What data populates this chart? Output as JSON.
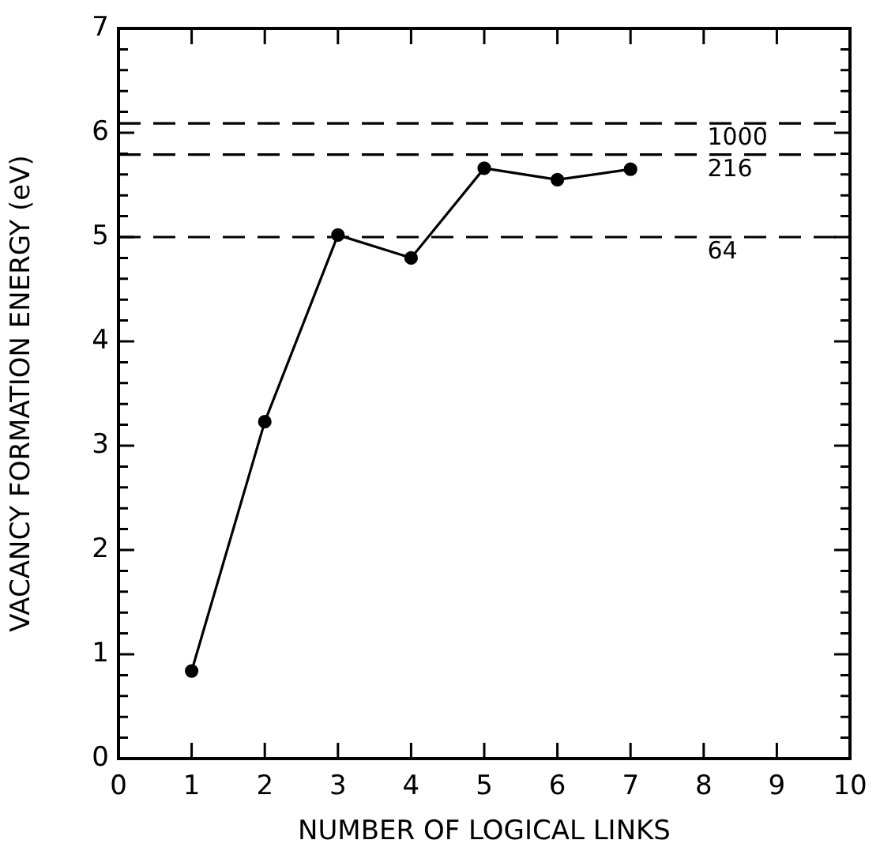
{
  "chart_data": {
    "type": "line",
    "xlabel": "NUMBER OF LOGICAL LINKS",
    "ylabel": "VACANCY FORMATION ENERGY (eV)",
    "x": [
      1,
      2,
      3,
      4,
      5,
      6,
      7
    ],
    "series": [
      {
        "color": "#000000",
        "values": [
          0.84,
          3.23,
          5.02,
          4.8,
          5.66,
          5.55,
          5.65
        ]
      }
    ],
    "xlim": [
      0,
      10
    ],
    "xticks": [
      0,
      1,
      2,
      3,
      4,
      5,
      6,
      7,
      8,
      9,
      10
    ],
    "ylim": [
      0,
      7
    ],
    "yticks": [
      0,
      {
        "value": 0.2,
        "label": null
      },
      {
        "value": 0.4,
        "label": null
      },
      {
        "value": 0.6,
        "label": null
      },
      {
        "value": 0.8,
        "label": null
      },
      1,
      {
        "value": 1.2,
        "label": null
      },
      {
        "value": 1.4,
        "label": null
      },
      {
        "value": 1.6,
        "label": null
      },
      {
        "value": 1.8,
        "label": null
      },
      2,
      {
        "value": 2.2,
        "label": null
      },
      {
        "value": 2.4,
        "label": null
      },
      {
        "value": 2.6,
        "label": null
      },
      {
        "value": 2.8,
        "label": null
      },
      3,
      {
        "value": 3.2,
        "label": null
      },
      {
        "value": 3.4,
        "label": null
      },
      {
        "value": 3.6,
        "label": null
      },
      {
        "value": 3.8,
        "label": null
      },
      4,
      {
        "value": 4.2,
        "label": null
      },
      {
        "value": 4.4,
        "label": null
      },
      {
        "value": 4.6,
        "label": null
      },
      {
        "value": 4.8,
        "label": null
      },
      5,
      {
        "value": 5.2,
        "label": null
      },
      {
        "value": 5.4,
        "label": null
      },
      {
        "value": 5.6,
        "label": null
      },
      {
        "value": 5.8,
        "label": null
      },
      6,
      {
        "value": 6.2,
        "label": null
      },
      {
        "value": 6.4,
        "label": null
      },
      {
        "value": 6.6,
        "label": null
      },
      {
        "value": 6.8,
        "label": null
      },
      7
    ],
    "ref_lines": [
      {
        "axis": "y",
        "value": 6.09,
        "color": "#000000",
        "line_style": "dashed"
      },
      {
        "axis": "y",
        "value": 5.79,
        "color": "#000000",
        "line_style": "dashed"
      },
      {
        "axis": "y",
        "value": 5.0,
        "color": "#000000",
        "line_style": "dashed"
      }
    ],
    "annotations": [
      {
        "text": "1000",
        "y": 6.09
      },
      {
        "text": "216",
        "y": 5.79
      },
      {
        "text": "64",
        "y": 5.0
      }
    ],
    "grid": false,
    "legend": false,
    "marker": "circle",
    "line_style": "solid"
  }
}
